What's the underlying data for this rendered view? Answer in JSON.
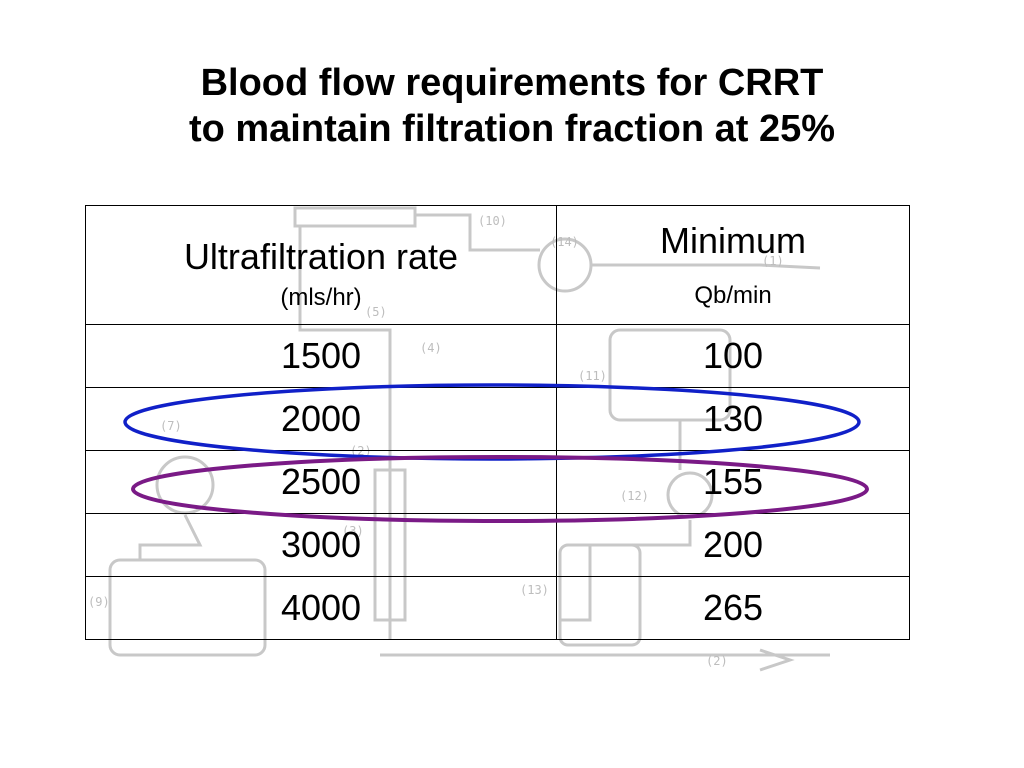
{
  "title": {
    "line1": "Blood flow requirements for CRRT",
    "line2": "to maintain filtration fraction at 25%"
  },
  "table": {
    "headers": [
      {
        "main": "Ultrafiltration rate",
        "sub": "(mls/hr)"
      },
      {
        "main": "Minimum",
        "sub": "Qb/min"
      }
    ],
    "rows": [
      [
        "1500",
        "100"
      ],
      [
        "2000",
        "130"
      ],
      [
        "2500",
        "155"
      ],
      [
        "3000",
        "200"
      ],
      [
        "4000",
        "265"
      ]
    ]
  },
  "highlights": [
    {
      "row_value": "2000",
      "color": "#1020c8"
    },
    {
      "row_value": "2500",
      "color": "#7a1a86"
    }
  ],
  "diagram_labels": [
    "(10)",
    "(14)",
    "(1)",
    "(5)",
    "(4)",
    "(11)",
    "(7)",
    "(2)",
    "(12)",
    "(3)",
    "(13)",
    "(9)",
    "(2)"
  ]
}
